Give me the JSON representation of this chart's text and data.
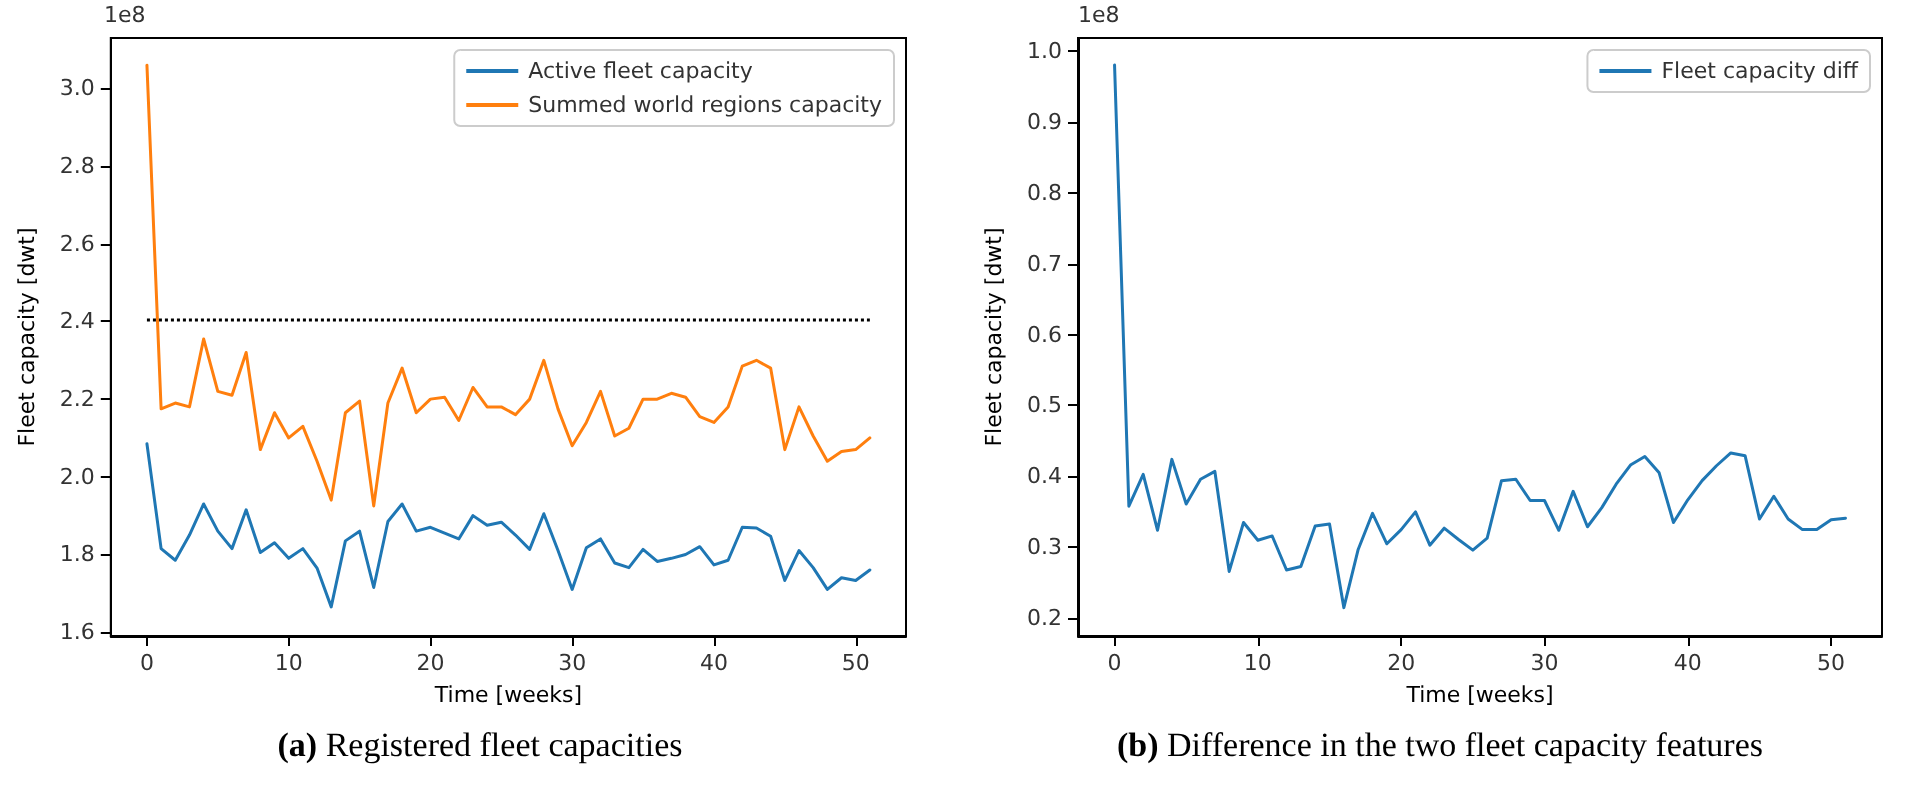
{
  "chart_data": [
    {
      "type": "line",
      "xlabel": "Time [weeks]",
      "ylabel": "Fleet capacity [dwt]",
      "annotations": [
        "1e8",
        "(a) Registered fleet capacities"
      ],
      "x": [
        0,
        1,
        2,
        3,
        4,
        5,
        6,
        7,
        8,
        9,
        10,
        11,
        12,
        13,
        14,
        15,
        16,
        17,
        18,
        19,
        20,
        21,
        22,
        23,
        24,
        25,
        26,
        27,
        28,
        29,
        30,
        31,
        32,
        33,
        34,
        35,
        36,
        37,
        38,
        39,
        40,
        41,
        42,
        43,
        44,
        45,
        46,
        47,
        48,
        49,
        50,
        51
      ],
      "series": [
        {
          "name": "Active fleet capacity",
          "color": "#1f77b4",
          "values": [
            2.085,
            1.815,
            1.785,
            1.85,
            1.93,
            1.86,
            1.815,
            1.915,
            1.805,
            1.83,
            1.79,
            1.815,
            1.765,
            1.665,
            1.835,
            1.86,
            1.715,
            1.885,
            1.93,
            1.86,
            1.87,
            1.855,
            1.84,
            1.9,
            1.875,
            1.883,
            1.85,
            1.813,
            1.905,
            1.81,
            1.71,
            1.817,
            1.84,
            1.778,
            1.766,
            1.813,
            1.782,
            1.79,
            1.8,
            1.82,
            1.773,
            1.785,
            1.87,
            1.868,
            1.847,
            1.733,
            1.81,
            1.766,
            1.71,
            1.74,
            1.733,
            1.76
          ]
        },
        {
          "name": "Summed world regions capacity",
          "color": "#ff7f0e",
          "values": [
            3.06,
            2.175,
            2.19,
            2.18,
            2.355,
            2.22,
            2.21,
            2.32,
            2.07,
            2.165,
            2.1,
            2.13,
            2.04,
            1.94,
            2.165,
            2.195,
            1.925,
            2.19,
            2.28,
            2.165,
            2.2,
            2.205,
            2.145,
            2.23,
            2.18,
            2.18,
            2.16,
            2.2,
            2.3,
            2.175,
            2.08,
            2.14,
            2.22,
            2.105,
            2.125,
            2.2,
            2.2,
            2.215,
            2.205,
            2.155,
            2.14,
            2.18,
            2.285,
            2.3,
            2.28,
            2.07,
            2.18,
            2.105,
            2.04,
            2.065,
            2.07,
            2.1
          ]
        }
      ],
      "ref_lines": [
        {
          "axis": "y",
          "value": 2.405,
          "color": "#000000",
          "line_style": "dotted"
        }
      ],
      "xlim": [
        -2.55,
        53.55
      ],
      "xticks": [
        0,
        10,
        20,
        30,
        40,
        50
      ],
      "ylim": [
        1.59,
        3.13
      ],
      "yticks": [
        {
          "value": 1.6,
          "label": "1.6"
        },
        {
          "value": 1.8,
          "label": "1.8"
        },
        {
          "value": 2,
          "label": "2.0"
        },
        {
          "value": 2.2,
          "label": "2.2"
        },
        {
          "value": 2.4,
          "label": "2.4"
        },
        {
          "value": 2.6,
          "label": "2.6"
        },
        {
          "value": 2.8,
          "label": "2.8"
        },
        {
          "value": 3,
          "label": "3.0"
        }
      ],
      "grid": false,
      "legend": "top right",
      "marker": "none",
      "line_style": "solid"
    },
    {
      "type": "line",
      "xlabel": "Time [weeks]",
      "ylabel": "Fleet capacity [dwt]",
      "annotations": [
        "1e8",
        "(b) Difference in the two fleet capacity features"
      ],
      "x": [
        0,
        1,
        2,
        3,
        4,
        5,
        6,
        7,
        8,
        9,
        10,
        11,
        12,
        13,
        14,
        15,
        16,
        17,
        18,
        19,
        20,
        21,
        22,
        23,
        24,
        25,
        26,
        27,
        28,
        29,
        30,
        31,
        32,
        33,
        34,
        35,
        36,
        37,
        38,
        39,
        40,
        41,
        42,
        43,
        44,
        45,
        46,
        47,
        48,
        49,
        50,
        51
      ],
      "series": [
        {
          "name": "Fleet capacity diff",
          "color": "#1f77b4",
          "values": [
            0.98,
            0.358,
            0.403,
            0.324,
            0.424,
            0.361,
            0.396,
            0.407,
            0.266,
            0.335,
            0.31,
            0.316,
            0.268,
            0.273,
            0.33,
            0.333,
            0.215,
            0.297,
            0.348,
            0.305,
            0.325,
            0.35,
            0.303,
            0.327,
            0.311,
            0.296,
            0.313,
            0.394,
            0.396,
            0.366,
            0.366,
            0.324,
            0.379,
            0.329,
            0.356,
            0.389,
            0.416,
            0.428,
            0.405,
            0.335,
            0.367,
            0.394,
            0.415,
            0.433,
            0.429,
            0.34,
            0.372,
            0.34,
            0.325,
            0.325,
            0.339,
            0.341
          ]
        }
      ],
      "xlim": [
        -2.55,
        53.55
      ],
      "xticks": [
        0,
        10,
        20,
        30,
        40,
        50
      ],
      "ylim": [
        0.175,
        1.018
      ],
      "yticks": [
        {
          "value": 0.2,
          "label": "0.2"
        },
        {
          "value": 0.3,
          "label": "0.3"
        },
        {
          "value": 0.4,
          "label": "0.4"
        },
        {
          "value": 0.5,
          "label": "0.5"
        },
        {
          "value": 0.6,
          "label": "0.6"
        },
        {
          "value": 0.7,
          "label": "0.7"
        },
        {
          "value": 0.8,
          "label": "0.8"
        },
        {
          "value": 0.9,
          "label": "0.9"
        },
        {
          "value": 1,
          "label": "1.0"
        }
      ],
      "grid": false,
      "legend": "top right",
      "marker": "none",
      "line_style": "solid"
    }
  ]
}
